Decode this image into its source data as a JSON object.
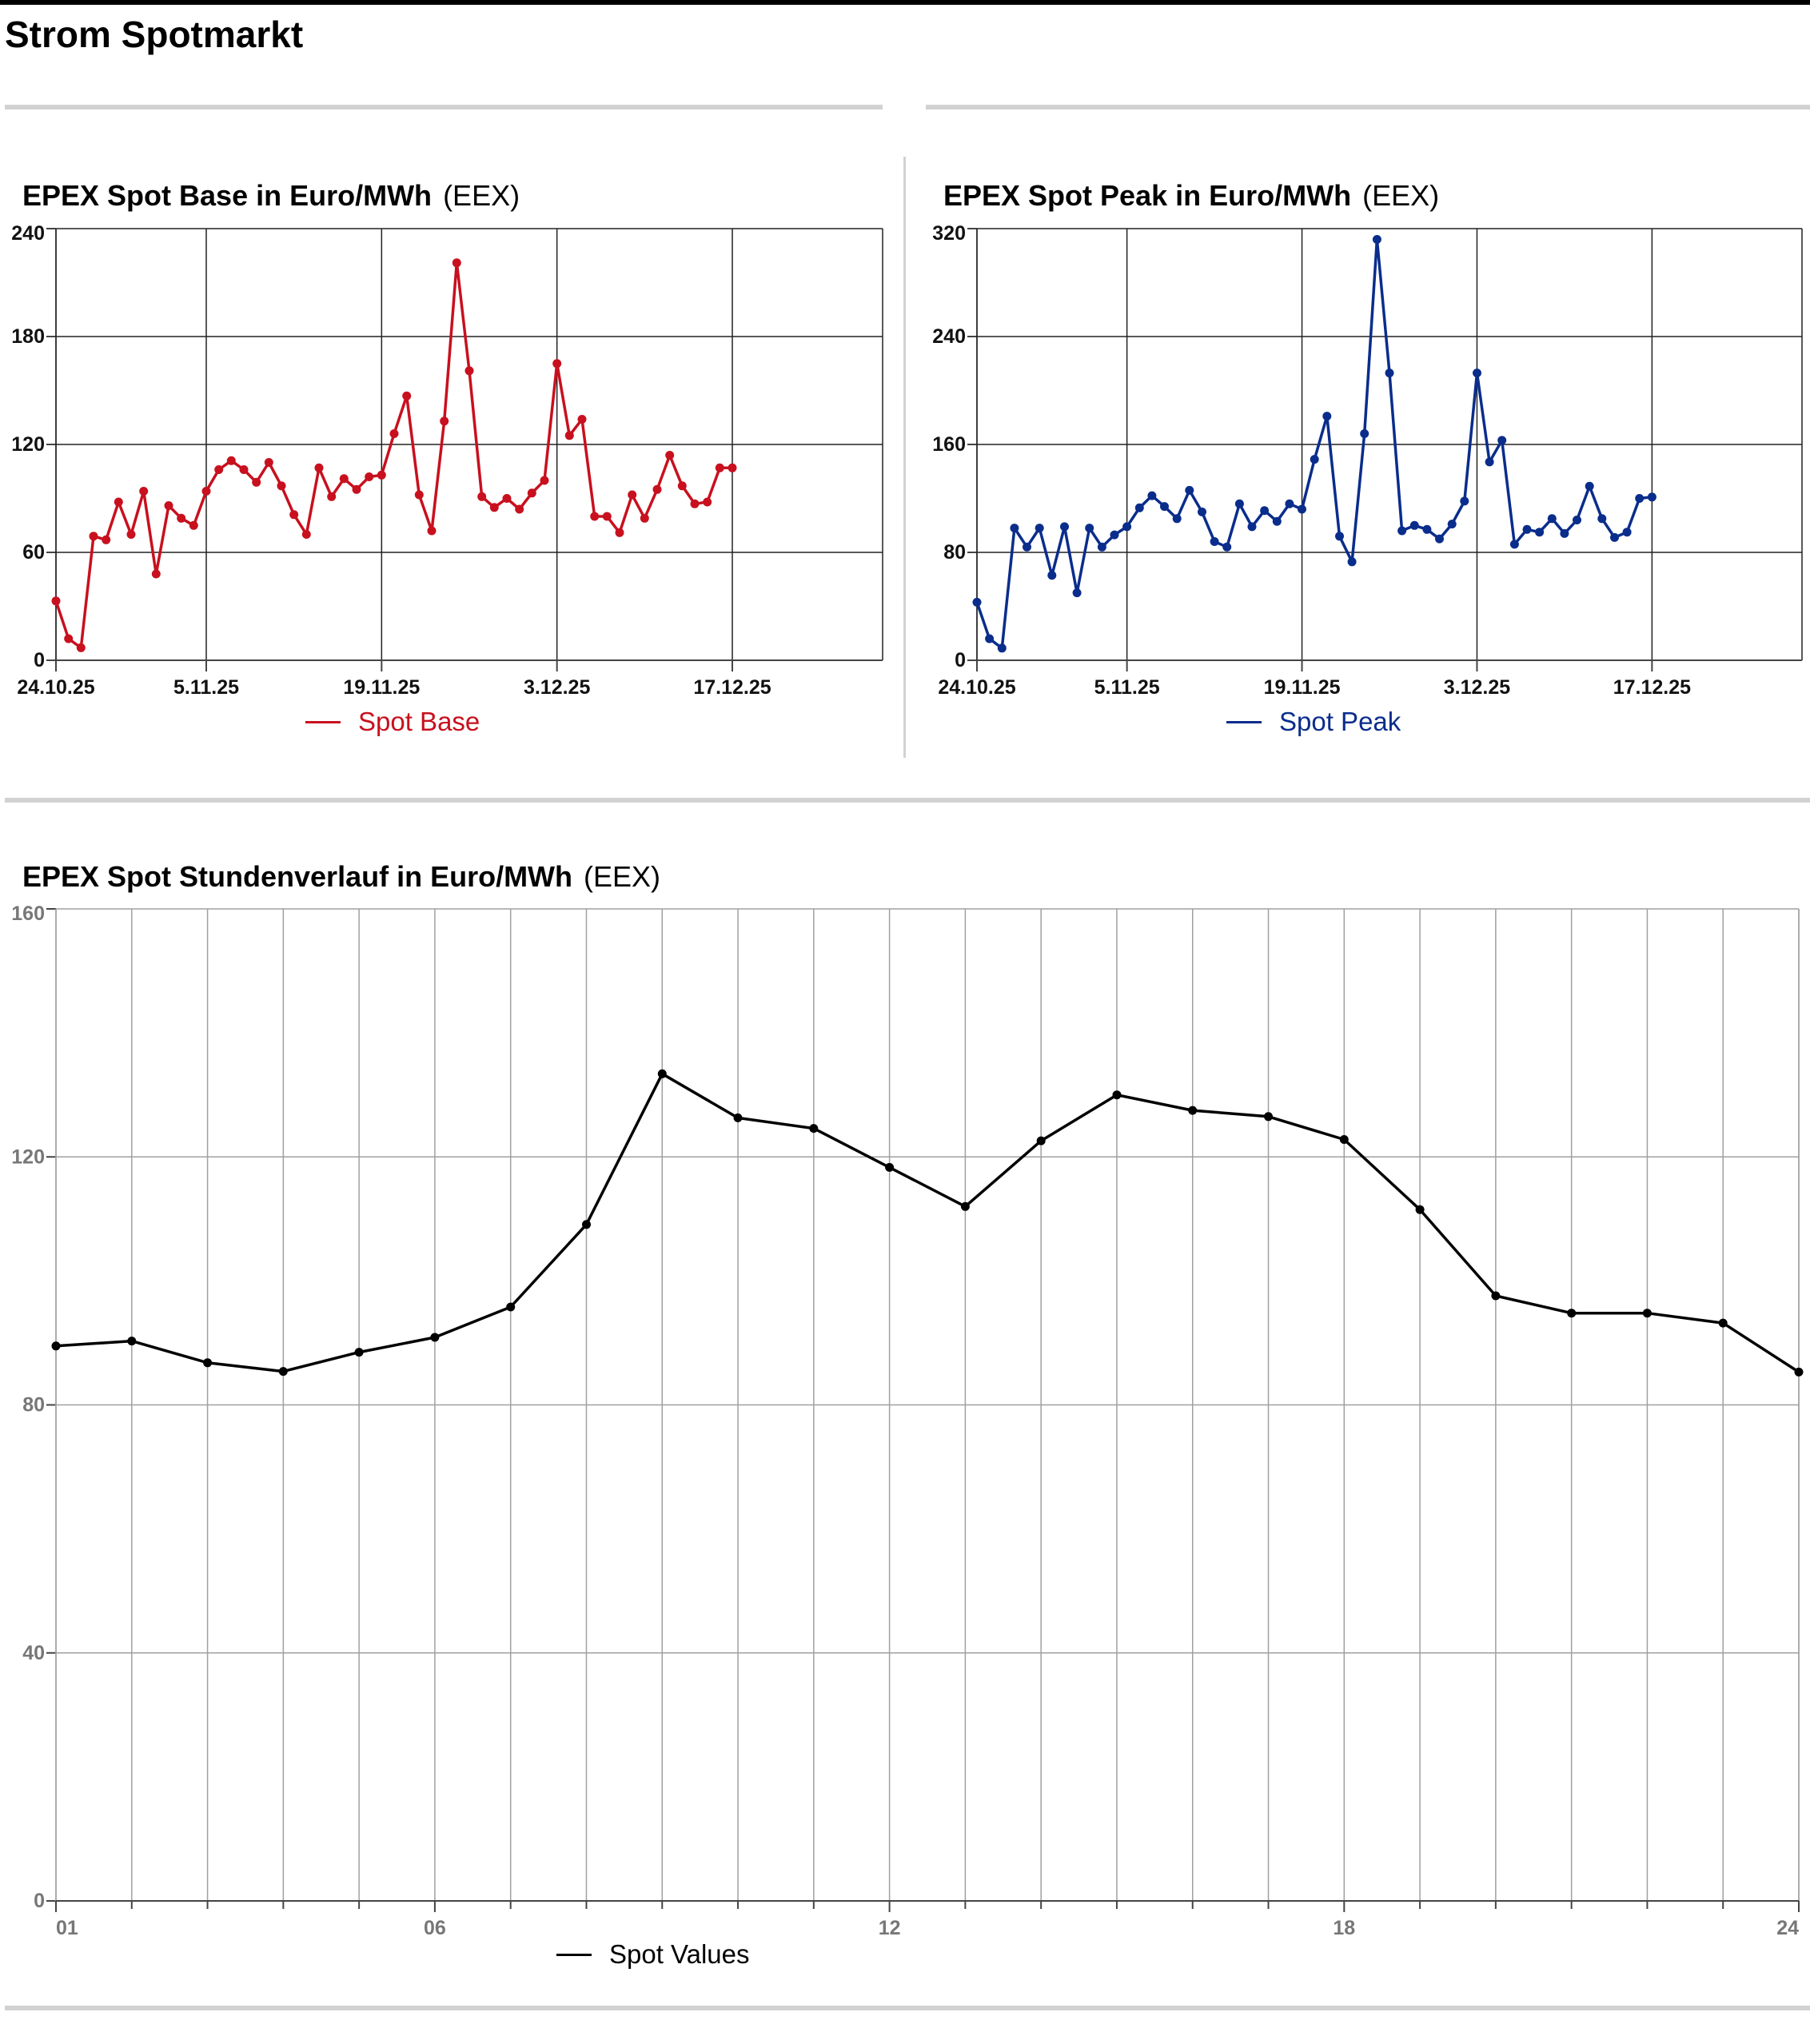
{
  "page": {
    "title": "Strom Spotmarkt"
  },
  "chart_data": [
    {
      "id": "base",
      "type": "line",
      "title": "EPEX Spot Base in Euro/MWh",
      "source": "(EEX)",
      "color": "#c8101e",
      "ylim": [
        0,
        240
      ],
      "yticks": [
        0,
        60,
        120,
        180,
        240
      ],
      "x_range": [
        "2025-10-24",
        "2025-12-29"
      ],
      "xtick_dates": [
        "2025-10-24",
        "2025-11-05",
        "2025-11-19",
        "2025-12-03",
        "2025-12-17"
      ],
      "xtick_labels": [
        "24.10.25",
        "5.11.25",
        "19.11.25",
        "3.12.25",
        "17.12.25"
      ],
      "series": [
        {
          "name": "Spot Base",
          "points": [
            [
              "2025-10-24",
              33
            ],
            [
              "2025-10-25",
              12
            ],
            [
              "2025-10-26",
              7
            ],
            [
              "2025-10-27",
              69
            ],
            [
              "2025-10-28",
              67
            ],
            [
              "2025-10-29",
              88
            ],
            [
              "2025-10-30",
              70
            ],
            [
              "2025-10-31",
              94
            ],
            [
              "2025-11-01",
              48
            ],
            [
              "2025-11-02",
              86
            ],
            [
              "2025-11-03",
              79
            ],
            [
              "2025-11-04",
              75
            ],
            [
              "2025-11-05",
              94
            ],
            [
              "2025-11-06",
              106
            ],
            [
              "2025-11-07",
              111
            ],
            [
              "2025-11-08",
              106
            ],
            [
              "2025-11-09",
              99
            ],
            [
              "2025-11-10",
              110
            ],
            [
              "2025-11-11",
              97
            ],
            [
              "2025-11-12",
              81
            ],
            [
              "2025-11-13",
              70
            ],
            [
              "2025-11-14",
              107
            ],
            [
              "2025-11-15",
              91
            ],
            [
              "2025-11-16",
              101
            ],
            [
              "2025-11-17",
              95
            ],
            [
              "2025-11-18",
              102
            ],
            [
              "2025-11-19",
              103
            ],
            [
              "2025-11-20",
              126
            ],
            [
              "2025-11-21",
              147
            ],
            [
              "2025-11-22",
              92
            ],
            [
              "2025-11-23",
              72
            ],
            [
              "2025-11-24",
              133
            ],
            [
              "2025-11-25",
              221
            ],
            [
              "2025-11-26",
              161
            ],
            [
              "2025-11-27",
              91
            ],
            [
              "2025-11-28",
              85
            ],
            [
              "2025-11-29",
              90
            ],
            [
              "2025-11-30",
              84
            ],
            [
              "2025-12-01",
              93
            ],
            [
              "2025-12-02",
              100
            ],
            [
              "2025-12-03",
              165
            ],
            [
              "2025-12-04",
              125
            ],
            [
              "2025-12-05",
              134
            ],
            [
              "2025-12-06",
              80
            ],
            [
              "2025-12-07",
              80
            ],
            [
              "2025-12-08",
              71
            ],
            [
              "2025-12-09",
              92
            ],
            [
              "2025-12-10",
              79
            ],
            [
              "2025-12-11",
              95
            ],
            [
              "2025-12-12",
              114
            ],
            [
              "2025-12-13",
              97
            ],
            [
              "2025-12-14",
              87
            ],
            [
              "2025-12-15",
              88
            ],
            [
              "2025-12-16",
              107
            ],
            [
              "2025-12-17",
              107
            ]
          ]
        }
      ],
      "legend": "bottom-center",
      "grid": true
    },
    {
      "id": "peak",
      "type": "line",
      "title": "EPEX Spot Peak in Euro/MWh",
      "source": "(EEX)",
      "color": "#0a2d8c",
      "ylim": [
        0,
        320
      ],
      "yticks": [
        0,
        80,
        160,
        240,
        320
      ],
      "x_range": [
        "2025-10-24",
        "2025-12-29"
      ],
      "xtick_dates": [
        "2025-10-24",
        "2025-11-05",
        "2025-11-19",
        "2025-12-03",
        "2025-12-17"
      ],
      "xtick_labels": [
        "24.10.25",
        "5.11.25",
        "19.11.25",
        "3.12.25",
        "17.12.25"
      ],
      "series": [
        {
          "name": "Spot Peak",
          "points": [
            [
              "2025-10-24",
              43
            ],
            [
              "2025-10-25",
              16
            ],
            [
              "2025-10-26",
              9
            ],
            [
              "2025-10-27",
              98
            ],
            [
              "2025-10-28",
              84
            ],
            [
              "2025-10-29",
              98
            ],
            [
              "2025-10-30",
              63
            ],
            [
              "2025-10-31",
              99
            ],
            [
              "2025-11-01",
              50
            ],
            [
              "2025-11-02",
              98
            ],
            [
              "2025-11-03",
              84
            ],
            [
              "2025-11-04",
              93
            ],
            [
              "2025-11-05",
              99
            ],
            [
              "2025-11-06",
              113
            ],
            [
              "2025-11-07",
              122
            ],
            [
              "2025-11-08",
              114
            ],
            [
              "2025-11-09",
              105
            ],
            [
              "2025-11-10",
              126
            ],
            [
              "2025-11-11",
              110
            ],
            [
              "2025-11-12",
              88
            ],
            [
              "2025-11-13",
              84
            ],
            [
              "2025-11-14",
              116
            ],
            [
              "2025-11-15",
              99
            ],
            [
              "2025-11-16",
              111
            ],
            [
              "2025-11-17",
              103
            ],
            [
              "2025-11-18",
              116
            ],
            [
              "2025-11-19",
              112
            ],
            [
              "2025-11-20",
              149
            ],
            [
              "2025-11-21",
              181
            ],
            [
              "2025-11-22",
              92
            ],
            [
              "2025-11-23",
              73
            ],
            [
              "2025-11-24",
              168
            ],
            [
              "2025-11-25",
              312
            ],
            [
              "2025-11-26",
              213
            ],
            [
              "2025-11-27",
              96
            ],
            [
              "2025-11-28",
              100
            ],
            [
              "2025-11-29",
              97
            ],
            [
              "2025-11-30",
              90
            ],
            [
              "2025-12-01",
              101
            ],
            [
              "2025-12-02",
              118
            ],
            [
              "2025-12-03",
              213
            ],
            [
              "2025-12-04",
              147
            ],
            [
              "2025-12-05",
              163
            ],
            [
              "2025-12-06",
              86
            ],
            [
              "2025-12-07",
              97
            ],
            [
              "2025-12-08",
              95
            ],
            [
              "2025-12-09",
              105
            ],
            [
              "2025-12-10",
              94
            ],
            [
              "2025-12-11",
              104
            ],
            [
              "2025-12-12",
              129
            ],
            [
              "2025-12-13",
              105
            ],
            [
              "2025-12-14",
              91
            ],
            [
              "2025-12-15",
              95
            ],
            [
              "2025-12-16",
              120
            ],
            [
              "2025-12-17",
              121
            ]
          ]
        }
      ],
      "legend": "bottom-center",
      "grid": true
    },
    {
      "id": "hourly",
      "type": "line",
      "title": "EPEX Spot Stundenverlauf in Euro/MWh",
      "source": "(EEX)",
      "color": "#000000",
      "ylim": [
        0,
        160
      ],
      "yticks": [
        0,
        40,
        80,
        120,
        160
      ],
      "xlim": [
        1,
        24
      ],
      "xticks": [
        1,
        6,
        12,
        18,
        24
      ],
      "xtick_labels": [
        "01",
        "06",
        "12",
        "18",
        "24"
      ],
      "x": [
        1,
        2,
        3,
        4,
        5,
        6,
        7,
        8,
        9,
        10,
        11,
        12,
        13,
        14,
        15,
        16,
        17,
        18,
        19,
        20,
        21,
        22,
        23,
        24
      ],
      "series": [
        {
          "name": "Spot Values",
          "values": [
            89.5,
            90.3,
            86.8,
            85.4,
            88.5,
            90.9,
            95.8,
            109.1,
            133.4,
            126.3,
            124.6,
            118.3,
            112.0,
            122.6,
            130.0,
            127.5,
            126.5,
            122.8,
            111.5,
            97.6,
            94.8,
            94.8,
            93.2,
            85.3
          ]
        }
      ],
      "legend": "bottom-center",
      "grid": true
    }
  ]
}
